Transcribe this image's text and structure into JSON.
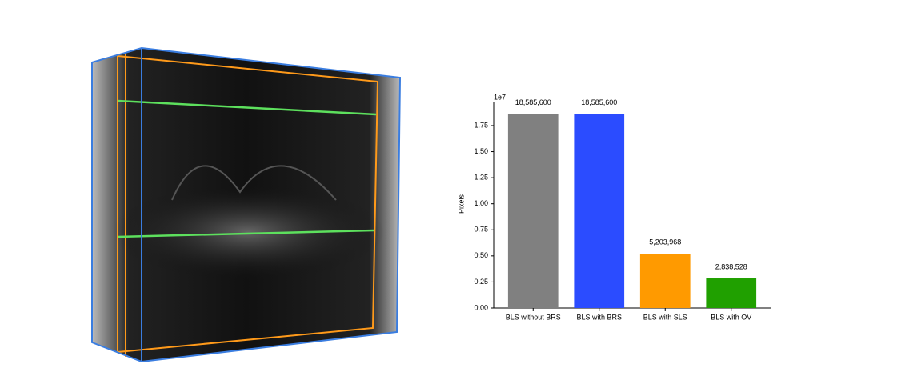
{
  "chart_data": {
    "type": "bar",
    "ylabel": "Pixels",
    "y_offset_label": "1e7",
    "categories": [
      "BLS without BRS",
      "BLS with BRS",
      "BLS with SLS",
      "BLS with OV"
    ],
    "values": [
      1.85856,
      1.85856,
      0.5203968,
      0.2838528
    ],
    "value_labels": [
      "18,585,600",
      "18,585,600",
      "5,203,968",
      "2,838,528"
    ],
    "colors": [
      "#808080",
      "#2b4cff",
      "#ff9a00",
      "#20a000"
    ],
    "ylim": [
      0,
      1.98
    ],
    "yticks": [
      {
        "value": 0,
        "label": "0.00"
      },
      {
        "value": 0.25,
        "label": "0.25"
      },
      {
        "value": 0.5,
        "label": "0.50"
      },
      {
        "value": 0.75,
        "label": "0.75"
      },
      {
        "value": 1,
        "label": "1.00"
      },
      {
        "value": 1.25,
        "label": "1.25"
      },
      {
        "value": 1.5,
        "label": "1.50"
      },
      {
        "value": 1.75,
        "label": "1.75"
      }
    ]
  }
}
